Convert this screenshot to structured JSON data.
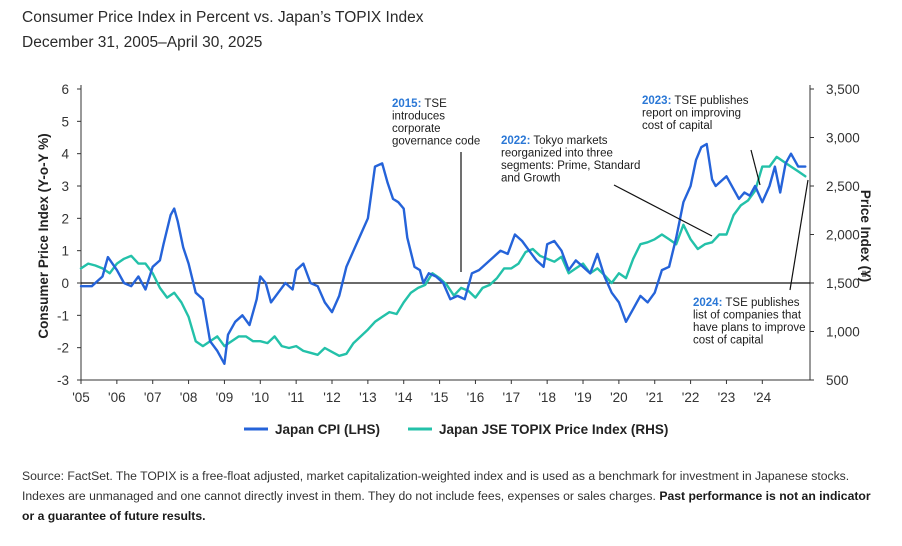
{
  "header": {
    "title": "Consumer Price Index in Percent vs. Japan’s TOPIX Index",
    "subtitle": "December 31, 2005–April 30, 2025"
  },
  "footer": {
    "source": "Source: FactSet. The TOPIX is a free-float adjusted, market capitalization-weighted index and is used as a benchmark for investment in Japanese stocks. Indexes are unmanaged and one cannot directly invest in them. They do not include fees, expenses or sales charges.",
    "disclaimer": "Past performance is not an indicator or a guarantee of future results."
  },
  "colors": {
    "cpi": "#2563d9",
    "topix": "#23c1a9",
    "annotation_year": "#2b78d6"
  },
  "chart_data": {
    "type": "line",
    "ylabel_left": "Consumer Price Index (Y-o-Y %)",
    "ylabel_right": "Price Index (¥)",
    "ylim_left": [
      -3,
      6
    ],
    "ylim_right": [
      500,
      3500
    ],
    "yticks_left": [
      "-3",
      "-2",
      "-1",
      "0",
      "1",
      "2",
      "3",
      "4",
      "5",
      "6"
    ],
    "yticks_right": [
      "500",
      "1,000",
      "1,500",
      "2,000",
      "2,500",
      "3,000",
      "3,500"
    ],
    "xlim": [
      2005,
      2025.33
    ],
    "xticks": [
      "'05",
      "'06",
      "'07",
      "'08",
      "'09",
      "'10",
      "'11",
      "'12",
      "'13",
      "'14",
      "'15",
      "'16",
      "'17",
      "'18",
      "'19",
      "'20",
      "'21",
      "'22",
      "'23",
      "'24"
    ],
    "legend_position": "bottom",
    "series": [
      {
        "name": "Japan CPI (LHS)",
        "axis": "left",
        "x": [
          2005.0,
          2005.3,
          2005.6,
          2005.75,
          2006.0,
          2006.2,
          2006.4,
          2006.6,
          2006.8,
          2007.0,
          2007.2,
          2007.3,
          2007.5,
          2007.6,
          2007.7,
          2007.85,
          2008.0,
          2008.2,
          2008.4,
          2008.6,
          2008.8,
          2009.0,
          2009.1,
          2009.3,
          2009.5,
          2009.7,
          2009.9,
          2010.0,
          2010.15,
          2010.3,
          2010.5,
          2010.7,
          2010.9,
          2011.0,
          2011.2,
          2011.4,
          2011.6,
          2011.8,
          2012.0,
          2012.2,
          2012.4,
          2012.6,
          2012.8,
          2013.0,
          2013.2,
          2013.4,
          2013.55,
          2013.7,
          2013.85,
          2014.0,
          2014.1,
          2014.3,
          2014.45,
          2014.55,
          2014.7,
          2014.9,
          2015.1,
          2015.3,
          2015.5,
          2015.7,
          2015.9,
          2016.1,
          2016.3,
          2016.5,
          2016.7,
          2016.9,
          2017.1,
          2017.3,
          2017.5,
          2017.7,
          2017.9,
          2018.0,
          2018.2,
          2018.4,
          2018.6,
          2018.8,
          2019.0,
          2019.2,
          2019.4,
          2019.6,
          2019.8,
          2020.0,
          2020.2,
          2020.4,
          2020.6,
          2020.8,
          2021.0,
          2021.2,
          2021.4,
          2021.6,
          2021.8,
          2022.0,
          2022.15,
          2022.3,
          2022.45,
          2022.6,
          2022.7,
          2022.9,
          2023.0,
          2023.2,
          2023.35,
          2023.5,
          2023.65,
          2023.8,
          2024.0,
          2024.2,
          2024.35,
          2024.5,
          2024.65,
          2024.8,
          2025.0,
          2025.2
        ],
        "values": [
          -0.1,
          -0.1,
          0.2,
          0.8,
          0.4,
          0.0,
          -0.1,
          0.2,
          -0.2,
          0.5,
          0.7,
          1.2,
          2.1,
          2.3,
          1.9,
          1.1,
          0.6,
          -0.3,
          -0.5,
          -1.8,
          -2.1,
          -2.5,
          -1.6,
          -1.2,
          -1.0,
          -1.3,
          -0.5,
          0.2,
          0.0,
          -0.6,
          -0.3,
          0.0,
          -0.2,
          0.4,
          0.6,
          0.0,
          -0.1,
          -0.6,
          -0.9,
          -0.4,
          0.5,
          1.0,
          1.5,
          2.0,
          3.6,
          3.7,
          3.1,
          2.6,
          2.5,
          2.3,
          1.4,
          0.5,
          0.4,
          0.0,
          0.3,
          0.2,
          0.0,
          -0.5,
          -0.4,
          -0.5,
          0.3,
          0.4,
          0.6,
          0.8,
          1.0,
          0.9,
          1.5,
          1.3,
          1.0,
          0.7,
          0.5,
          1.2,
          1.3,
          1.0,
          0.4,
          0.7,
          0.5,
          0.3,
          0.9,
          0.2,
          -0.3,
          -0.6,
          -1.2,
          -0.8,
          -0.4,
          -0.6,
          -0.3,
          0.4,
          0.5,
          1.4,
          2.5,
          3.0,
          3.8,
          4.2,
          4.3,
          3.2,
          3.0,
          3.2,
          3.3,
          2.9,
          2.6,
          2.8,
          2.7,
          3.0,
          2.5,
          3.0,
          3.6,
          2.8,
          3.7,
          4.0,
          3.6,
          3.6
        ]
      },
      {
        "name": "Japan JSE TOPIX Price Index (RHS)",
        "axis": "right",
        "x": [
          2005.0,
          2005.2,
          2005.4,
          2005.6,
          2005.8,
          2006.0,
          2006.2,
          2006.4,
          2006.6,
          2006.8,
          2007.0,
          2007.2,
          2007.4,
          2007.6,
          2007.8,
          2008.0,
          2008.2,
          2008.4,
          2008.6,
          2008.8,
          2009.0,
          2009.2,
          2009.4,
          2009.6,
          2009.8,
          2010.0,
          2010.2,
          2010.4,
          2010.6,
          2010.8,
          2011.0,
          2011.2,
          2011.4,
          2011.6,
          2011.8,
          2012.0,
          2012.2,
          2012.4,
          2012.6,
          2012.8,
          2013.0,
          2013.2,
          2013.4,
          2013.6,
          2013.8,
          2014.0,
          2014.2,
          2014.4,
          2014.6,
          2014.8,
          2015.0,
          2015.2,
          2015.4,
          2015.6,
          2015.8,
          2016.0,
          2016.2,
          2016.4,
          2016.6,
          2016.8,
          2017.0,
          2017.2,
          2017.4,
          2017.6,
          2017.8,
          2018.0,
          2018.2,
          2018.4,
          2018.6,
          2018.8,
          2019.0,
          2019.2,
          2019.4,
          2019.6,
          2019.8,
          2020.0,
          2020.2,
          2020.4,
          2020.6,
          2020.8,
          2021.0,
          2021.2,
          2021.4,
          2021.6,
          2021.8,
          2022.0,
          2022.2,
          2022.4,
          2022.6,
          2022.8,
          2023.0,
          2023.2,
          2023.4,
          2023.6,
          2023.8,
          2024.0,
          2024.2,
          2024.4,
          2024.6,
          2024.8,
          2025.0,
          2025.2
        ],
        "values": [
          1650,
          1700,
          1680,
          1650,
          1600,
          1700,
          1750,
          1780,
          1700,
          1700,
          1600,
          1450,
          1350,
          1400,
          1300,
          1150,
          900,
          850,
          900,
          950,
          850,
          900,
          950,
          950,
          900,
          900,
          880,
          950,
          850,
          830,
          850,
          800,
          780,
          760,
          830,
          790,
          750,
          770,
          880,
          950,
          1020,
          1100,
          1150,
          1200,
          1180,
          1300,
          1400,
          1450,
          1480,
          1600,
          1550,
          1480,
          1370,
          1450,
          1420,
          1350,
          1450,
          1480,
          1550,
          1650,
          1650,
          1700,
          1820,
          1850,
          1780,
          1750,
          1720,
          1770,
          1600,
          1650,
          1700,
          1600,
          1650,
          1580,
          1500,
          1600,
          1550,
          1750,
          1900,
          1920,
          1950,
          2000,
          1950,
          1900,
          2100,
          1950,
          1850,
          1900,
          1920,
          2000,
          2000,
          2200,
          2300,
          2350,
          2450,
          2700,
          2700,
          2800,
          2750,
          2700,
          2650,
          2600
        ]
      }
    ]
  },
  "annotations": [
    {
      "year": "2015",
      "text": [
        "TSE",
        "introduces",
        "corporate",
        "governance code"
      ]
    },
    {
      "year": "2022",
      "text": [
        "Tokyo markets",
        "reorganized into three",
        "segments: Prime, Standard",
        "and Growth"
      ]
    },
    {
      "year": "2023",
      "text": [
        "TSE publishes",
        "report on improving",
        "cost of capital"
      ]
    },
    {
      "year": "2024",
      "text": [
        "TSE publishes",
        "list of companies that",
        "have plans to improve",
        "cost of capital"
      ]
    }
  ]
}
